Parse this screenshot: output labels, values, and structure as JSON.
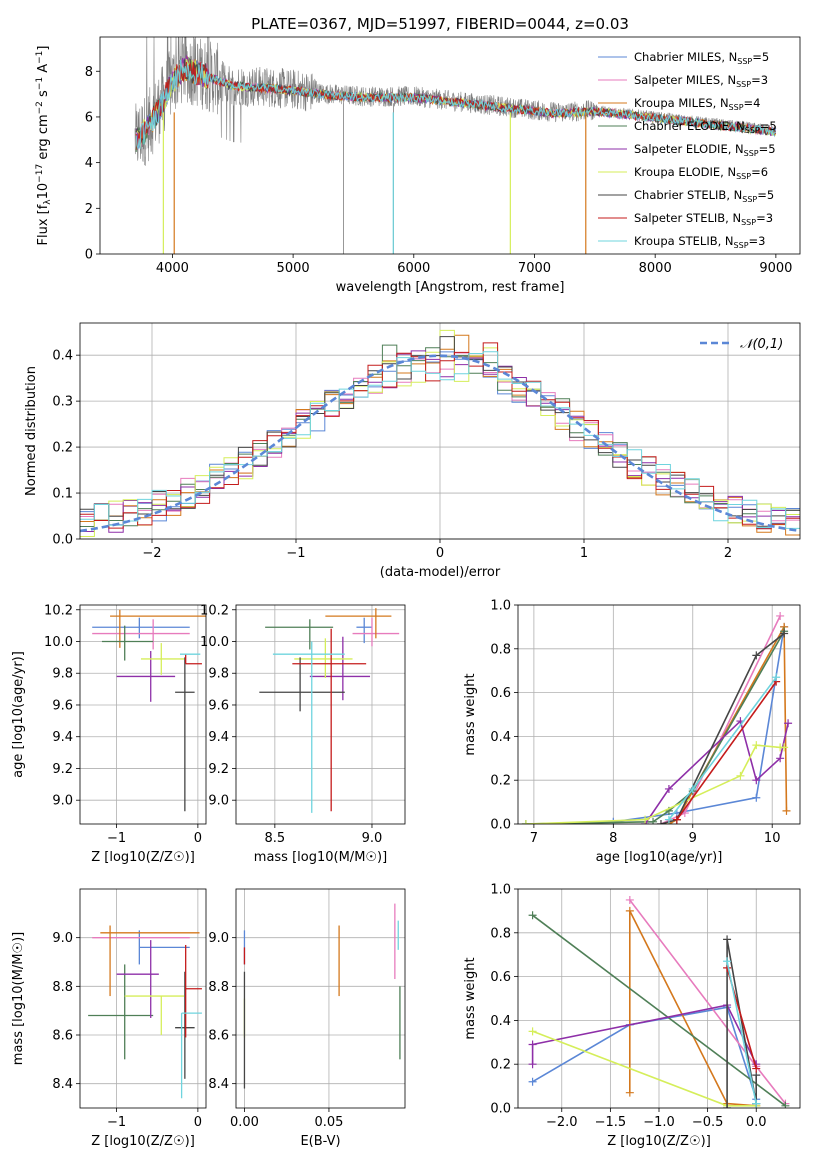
{
  "page_title": "PLATE=0367, MJD=51997, FIBERID=0044, z=0.03",
  "legend_entries": [
    {
      "name": "Chabrier MILES",
      "nssp": "5",
      "color": "#5b87d6"
    },
    {
      "name": "Salpeter MILES",
      "nssp": "3",
      "color": "#e77bbd"
    },
    {
      "name": "Kroupa MILES",
      "nssp": "4",
      "color": "#d4781d"
    },
    {
      "name": "Chabrier ELODIE",
      "nssp": "5",
      "color": "#4f7f57"
    },
    {
      "name": "Salpeter ELODIE",
      "nssp": "5",
      "color": "#8e2fa8"
    },
    {
      "name": "Kroupa ELODIE",
      "nssp": "6",
      "color": "#d5ee5a"
    },
    {
      "name": "Chabrier STELIB",
      "nssp": "5",
      "color": "#454545"
    },
    {
      "name": "Salpeter STELIB",
      "nssp": "3",
      "color": "#c41b1b"
    },
    {
      "name": "Kroupa STELIB",
      "nssp": "3",
      "color": "#6fd4de"
    }
  ],
  "chart_data": [
    {
      "type": "line",
      "id": "spectrum",
      "xlabel": "wavelength [Angstrom, rest frame]",
      "ylabel": "Flux [f_λ 10^-17 erg cm^-2 s^-1 A^-1]",
      "xlim": [
        3400,
        9200
      ],
      "ylim": [
        0,
        9.5
      ],
      "xticks": [
        4000,
        5000,
        6000,
        7000,
        8000,
        9000
      ],
      "yticks": [
        0,
        2,
        4,
        6,
        8
      ],
      "data_color": "#7f7f7f",
      "spectrum_knots": {
        "x": [
          3700,
          3800,
          3900,
          4000,
          4100,
          4300,
          4500,
          4800,
          5000,
          5300,
          5600,
          6000,
          6500,
          7000,
          7200,
          7500,
          8000,
          8500,
          9000
        ],
        "y": [
          5.0,
          5.6,
          6.5,
          7.6,
          8.2,
          7.8,
          7.4,
          7.3,
          7.2,
          7.0,
          6.9,
          6.9,
          6.6,
          6.3,
          6.2,
          6.3,
          6.0,
          5.7,
          5.4
        ]
      },
      "grid": false,
      "legend": "upper right"
    },
    {
      "type": "histogram",
      "id": "residuals",
      "xlabel": "(data-model)/error",
      "ylabel": "Normed distribution",
      "xlim": [
        -2.5,
        2.5
      ],
      "ylim": [
        0,
        0.47
      ],
      "xticks": [
        -2,
        -1,
        0,
        1,
        2
      ],
      "yticks": [
        0.0,
        0.1,
        0.2,
        0.3,
        0.4
      ],
      "bin_width": 0.1,
      "reference_label": "𝒩(0,1)",
      "grid": true,
      "legend": "upper right"
    },
    {
      "type": "scatter",
      "id": "age-vs-Z",
      "xlabel": "Z [log10(Z/Z☉)]",
      "ylabel": "age [log10(age/yr)]",
      "xlim": [
        -1.45,
        0.1
      ],
      "ylim": [
        8.85,
        10.23
      ],
      "xticks": [
        -1,
        0
      ],
      "yticks": [
        9.0,
        9.2,
        9.4,
        9.6,
        9.8,
        10.0,
        10.2
      ],
      "points": [
        {
          "c": "#5b87d6",
          "x": -0.72,
          "xl": 0.58,
          "xh": 0.62,
          "y": 10.09,
          "yl": 0.07,
          "yh": 0.06
        },
        {
          "c": "#e77bbd",
          "x": -0.55,
          "xl": 0.75,
          "xh": 0.45,
          "y": 10.05,
          "yl": 0.1,
          "yh": 0.09
        },
        {
          "c": "#d4781d",
          "x": -0.96,
          "xl": 0.12,
          "xh": 1.1,
          "y": 10.16,
          "yl": 0.2,
          "yh": 0.04
        },
        {
          "c": "#4f7f57",
          "x": -0.9,
          "xl": 0.28,
          "xh": 0.35,
          "y": 10.0,
          "yl": 0.12,
          "yh": 0.1
        },
        {
          "c": "#8e2fa8",
          "x": -0.58,
          "xl": 0.42,
          "xh": 0.3,
          "y": 9.78,
          "yl": 0.16,
          "yh": 0.16
        },
        {
          "c": "#d5ee5a",
          "x": -0.45,
          "xl": 0.25,
          "xh": 0.28,
          "y": 9.89,
          "yl": 0.1,
          "yh": 0.1
        },
        {
          "c": "#454545",
          "x": -0.16,
          "xl": 0.12,
          "xh": 0.12,
          "y": 9.68,
          "yl": 0.75,
          "yh": 0.22
        },
        {
          "c": "#c41b1b",
          "x": -0.15,
          "xl": 0.0,
          "xh": 0.2,
          "y": 9.86,
          "yl": 0.0,
          "yh": 0.06
        },
        {
          "c": "#6fd4de",
          "x": -0.22,
          "xl": 0.0,
          "xh": 0.25,
          "y": 9.92,
          "yl": 0.0,
          "yh": 0.0
        }
      ],
      "grid": true
    },
    {
      "type": "scatter",
      "id": "age-vs-mass",
      "xlabel": "mass [log10(M/M☉)]",
      "ylabel": "",
      "xlim": [
        8.3,
        9.17
      ],
      "ylim": [
        8.85,
        10.23
      ],
      "xticks": [
        8.5,
        9.0
      ],
      "yticks": [
        9.0,
        9.2,
        9.4,
        9.6,
        9.8,
        10.0,
        10.2
      ],
      "points": [
        {
          "c": "#5b87d6",
          "x": 8.96,
          "xl": 0.04,
          "xh": 0.04,
          "y": 10.09,
          "yl": 0.1,
          "yh": 0.06
        },
        {
          "c": "#e77bbd",
          "x": 9.0,
          "xl": 0.1,
          "xh": 0.14,
          "y": 10.05,
          "yl": 0.08,
          "yh": 0.1
        },
        {
          "c": "#d4781d",
          "x": 9.02,
          "xl": 0.26,
          "xh": 0.08,
          "y": 10.16,
          "yl": 0.14,
          "yh": 0.05
        },
        {
          "c": "#4f7f57",
          "x": 8.68,
          "xl": 0.23,
          "xh": 0.12,
          "y": 10.09,
          "yl": 0.14,
          "yh": 0.05
        },
        {
          "c": "#8e2fa8",
          "x": 8.85,
          "xl": 0.17,
          "xh": 0.14,
          "y": 9.78,
          "yl": 0.15,
          "yh": 0.25
        },
        {
          "c": "#d5ee5a",
          "x": 8.76,
          "xl": 0.16,
          "xh": 0.14,
          "y": 9.89,
          "yl": 0.12,
          "yh": 0.13
        },
        {
          "c": "#454545",
          "x": 8.63,
          "xl": 0.21,
          "xh": 0.23,
          "y": 9.68,
          "yl": 0.12,
          "yh": 0.22
        },
        {
          "c": "#c41b1b",
          "x": 8.79,
          "xl": 0.2,
          "xh": 0.18,
          "y": 9.86,
          "yl": 0.93,
          "yh": 0.22
        },
        {
          "c": "#6fd4de",
          "x": 8.69,
          "xl": 0.2,
          "xh": 0.17,
          "y": 9.92,
          "yl": 1.0,
          "yh": 0.08
        }
      ],
      "grid": true
    },
    {
      "type": "line",
      "id": "mass-weight-vs-age",
      "xlabel": "age [log10(age/yr)]",
      "ylabel": "mass weight",
      "xlim": [
        6.8,
        10.35
      ],
      "ylim": [
        0,
        1.0
      ],
      "xticks": [
        7,
        8,
        9,
        10
      ],
      "yticks": [
        0.0,
        0.2,
        0.4,
        0.6,
        0.8,
        1.0
      ],
      "series": [
        {
          "c": "#5b87d6",
          "x": [
            6.9,
            8.0,
            8.8,
            9.8,
            10.15
          ],
          "y": [
            0.0,
            0.01,
            0.05,
            0.12,
            0.9
          ]
        },
        {
          "c": "#e77bbd",
          "x": [
            8.6,
            8.9,
            10.1
          ],
          "y": [
            0.0,
            0.05,
            0.95
          ]
        },
        {
          "c": "#d4781d",
          "x": [
            8.7,
            8.8,
            10.15,
            10.18
          ],
          "y": [
            0.0,
            0.02,
            0.9,
            0.06
          ]
        },
        {
          "c": "#4f7f57",
          "x": [
            6.9,
            8.5,
            8.7,
            9.0,
            10.15
          ],
          "y": [
            0.0,
            0.01,
            0.06,
            0.15,
            0.88
          ]
        },
        {
          "c": "#8e2fa8",
          "x": [
            8.4,
            8.7,
            9.6,
            9.8,
            10.1,
            10.2
          ],
          "y": [
            0.0,
            0.16,
            0.47,
            0.2,
            0.3,
            0.46
          ]
        },
        {
          "c": "#d5ee5a",
          "x": [
            6.9,
            8.4,
            9.6,
            9.8,
            10.1,
            10.15
          ],
          "y": [
            0.0,
            0.02,
            0.22,
            0.36,
            0.35,
            0.35
          ]
        },
        {
          "c": "#454545",
          "x": [
            8.6,
            8.8,
            9.8,
            10.15
          ],
          "y": [
            0.0,
            0.02,
            0.77,
            0.87
          ]
        },
        {
          "c": "#c41b1b",
          "x": [
            8.8,
            10.05
          ],
          "y": [
            0.02,
            0.65
          ]
        },
        {
          "c": "#6fd4de",
          "x": [
            8.7,
            9.0,
            10.05
          ],
          "y": [
            0.02,
            0.16,
            0.67
          ]
        }
      ],
      "grid": true
    },
    {
      "type": "scatter",
      "id": "mass-vs-Z",
      "xlabel": "Z [log10(Z/Z☉)]",
      "ylabel": "mass [log10(M/M☉)]",
      "xlim": [
        -1.45,
        0.1
      ],
      "ylim": [
        8.3,
        9.2
      ],
      "xticks": [
        -1,
        0
      ],
      "yticks": [
        8.4,
        8.6,
        8.8,
        9.0
      ],
      "points": [
        {
          "c": "#5b87d6",
          "x": -0.72,
          "xl": 0.0,
          "xh": 0.62,
          "y": 8.96,
          "yl": 0.07,
          "yh": 0.07
        },
        {
          "c": "#e77bbd",
          "x": -0.55,
          "xl": 0.75,
          "xh": 0.45,
          "y": 9.0,
          "yl": 0.0,
          "yh": 0.0
        },
        {
          "c": "#d4781d",
          "x": -1.08,
          "xl": 0.12,
          "xh": 1.1,
          "y": 9.02,
          "yl": 0.26,
          "yh": 0.03
        },
        {
          "c": "#4f7f57",
          "x": -0.9,
          "xl": 0.45,
          "xh": 0.35,
          "y": 8.68,
          "yl": 0.18,
          "yh": 0.21
        },
        {
          "c": "#8e2fa8",
          "x": -0.58,
          "xl": 0.42,
          "xh": 0.1,
          "y": 8.85,
          "yl": 0.18,
          "yh": 0.14
        },
        {
          "c": "#d5ee5a",
          "x": -0.45,
          "xl": 0.45,
          "xh": 0.28,
          "y": 8.76,
          "yl": 0.16,
          "yh": 0.0
        },
        {
          "c": "#454545",
          "x": -0.16,
          "xl": 0.12,
          "xh": 0.12,
          "y": 8.63,
          "yl": 0.21,
          "yh": 0.23
        },
        {
          "c": "#c41b1b",
          "x": -0.15,
          "xl": 0.0,
          "xh": 0.2,
          "y": 8.79,
          "yl": 0.2,
          "yh": 0.18
        },
        {
          "c": "#6fd4de",
          "x": -0.2,
          "xl": 0.0,
          "xh": 0.25,
          "y": 8.69,
          "yl": 0.35,
          "yh": 0.0
        }
      ],
      "grid": true
    },
    {
      "type": "scatter",
      "id": "mass-vs-EBV",
      "xlabel": "E(B-V)",
      "ylabel": "",
      "xlim": [
        -0.005,
        0.095
      ],
      "ylim": [
        8.3,
        9.2
      ],
      "xticks": [
        0.0,
        0.05
      ],
      "yticks": [
        8.4,
        8.6,
        8.8,
        9.0
      ],
      "points": [
        {
          "c": "#5b87d6",
          "x": 0.0,
          "xl": 0.0,
          "xh": 0.0,
          "y": 8.96,
          "yl": 0.07,
          "yh": 0.07
        },
        {
          "c": "#e77bbd",
          "x": 0.089,
          "xl": 0.0,
          "xh": 0.0,
          "y": 9.0,
          "yl": 0.17,
          "yh": 0.14
        },
        {
          "c": "#d4781d",
          "x": 0.056,
          "xl": 0.0,
          "xh": 0.0,
          "y": 8.88,
          "yl": 0.12,
          "yh": 0.17
        },
        {
          "c": "#4f7f57",
          "x": 0.092,
          "xl": 0.0,
          "xh": 0.0,
          "y": 8.68,
          "yl": 0.18,
          "yh": 0.12
        },
        {
          "c": "#8e2fa8",
          "x": 0.001,
          "xl": 0.0,
          "xh": 0.0,
          "y": 8.97,
          "yl": 0.0,
          "yh": 0.0
        },
        {
          "c": "#d5ee5a",
          "x": 0.0,
          "xl": 0.0,
          "xh": 0.0,
          "y": 8.75,
          "yl": 0.16,
          "yh": 0.0
        },
        {
          "c": "#454545",
          "x": 0.0,
          "xl": 0.0,
          "xh": 0.0,
          "y": 8.63,
          "yl": 0.25,
          "yh": 0.23
        },
        {
          "c": "#c41b1b",
          "x": 0.0,
          "xl": 0.0,
          "xh": 0.0,
          "y": 8.89,
          "yl": 0.0,
          "yh": 0.07
        },
        {
          "c": "#6fd4de",
          "x": 0.091,
          "xl": 0.0,
          "xh": 0.0,
          "y": 8.95,
          "yl": 0.0,
          "yh": 0.12
        }
      ],
      "grid": true
    },
    {
      "type": "line",
      "id": "mass-weight-vs-Z",
      "xlabel": "Z [log10(Z/Z☉)]",
      "ylabel": "mass weight",
      "xlim": [
        -2.45,
        0.45
      ],
      "ylim": [
        0,
        1.0
      ],
      "xticks": [
        -2.0,
        -1.5,
        -1.0,
        -0.5,
        0.0
      ],
      "yticks": [
        0.0,
        0.2,
        0.4,
        0.6,
        0.8,
        1.0
      ],
      "series": [
        {
          "c": "#5b87d6",
          "x": [
            -2.3,
            -1.3,
            -0.3,
            0.0
          ],
          "y": [
            0.12,
            0.38,
            0.46,
            0.04
          ]
        },
        {
          "c": "#e77bbd",
          "x": [
            -1.3,
            0.0,
            0.3
          ],
          "y": [
            0.95,
            0.19,
            0.02
          ]
        },
        {
          "c": "#d4781d",
          "x": [
            -1.3,
            -1.3,
            -0.3,
            0.0
          ],
          "y": [
            0.07,
            0.9,
            0.02,
            0.01
          ]
        },
        {
          "c": "#4f7f57",
          "x": [
            -2.3,
            0.3
          ],
          "y": [
            0.88,
            0.01
          ]
        },
        {
          "c": "#8e2fa8",
          "x": [
            -2.3,
            -2.3,
            -0.3,
            0.0
          ],
          "y": [
            0.2,
            0.29,
            0.47,
            0.2
          ]
        },
        {
          "c": "#d5ee5a",
          "x": [
            -2.3,
            -0.3,
            0.0
          ],
          "y": [
            0.35,
            0.01,
            0.01
          ]
        },
        {
          "c": "#454545",
          "x": [
            -0.3,
            -0.3,
            0.0,
            0.0
          ],
          "y": [
            0.0,
            0.77,
            0.02,
            0.15
          ]
        },
        {
          "c": "#c41b1b",
          "x": [
            -0.3,
            0.0
          ],
          "y": [
            0.64,
            0.18
          ]
        },
        {
          "c": "#6fd4de",
          "x": [
            -0.3,
            0.0
          ],
          "y": [
            0.67,
            0.02
          ]
        }
      ],
      "grid": true
    }
  ]
}
